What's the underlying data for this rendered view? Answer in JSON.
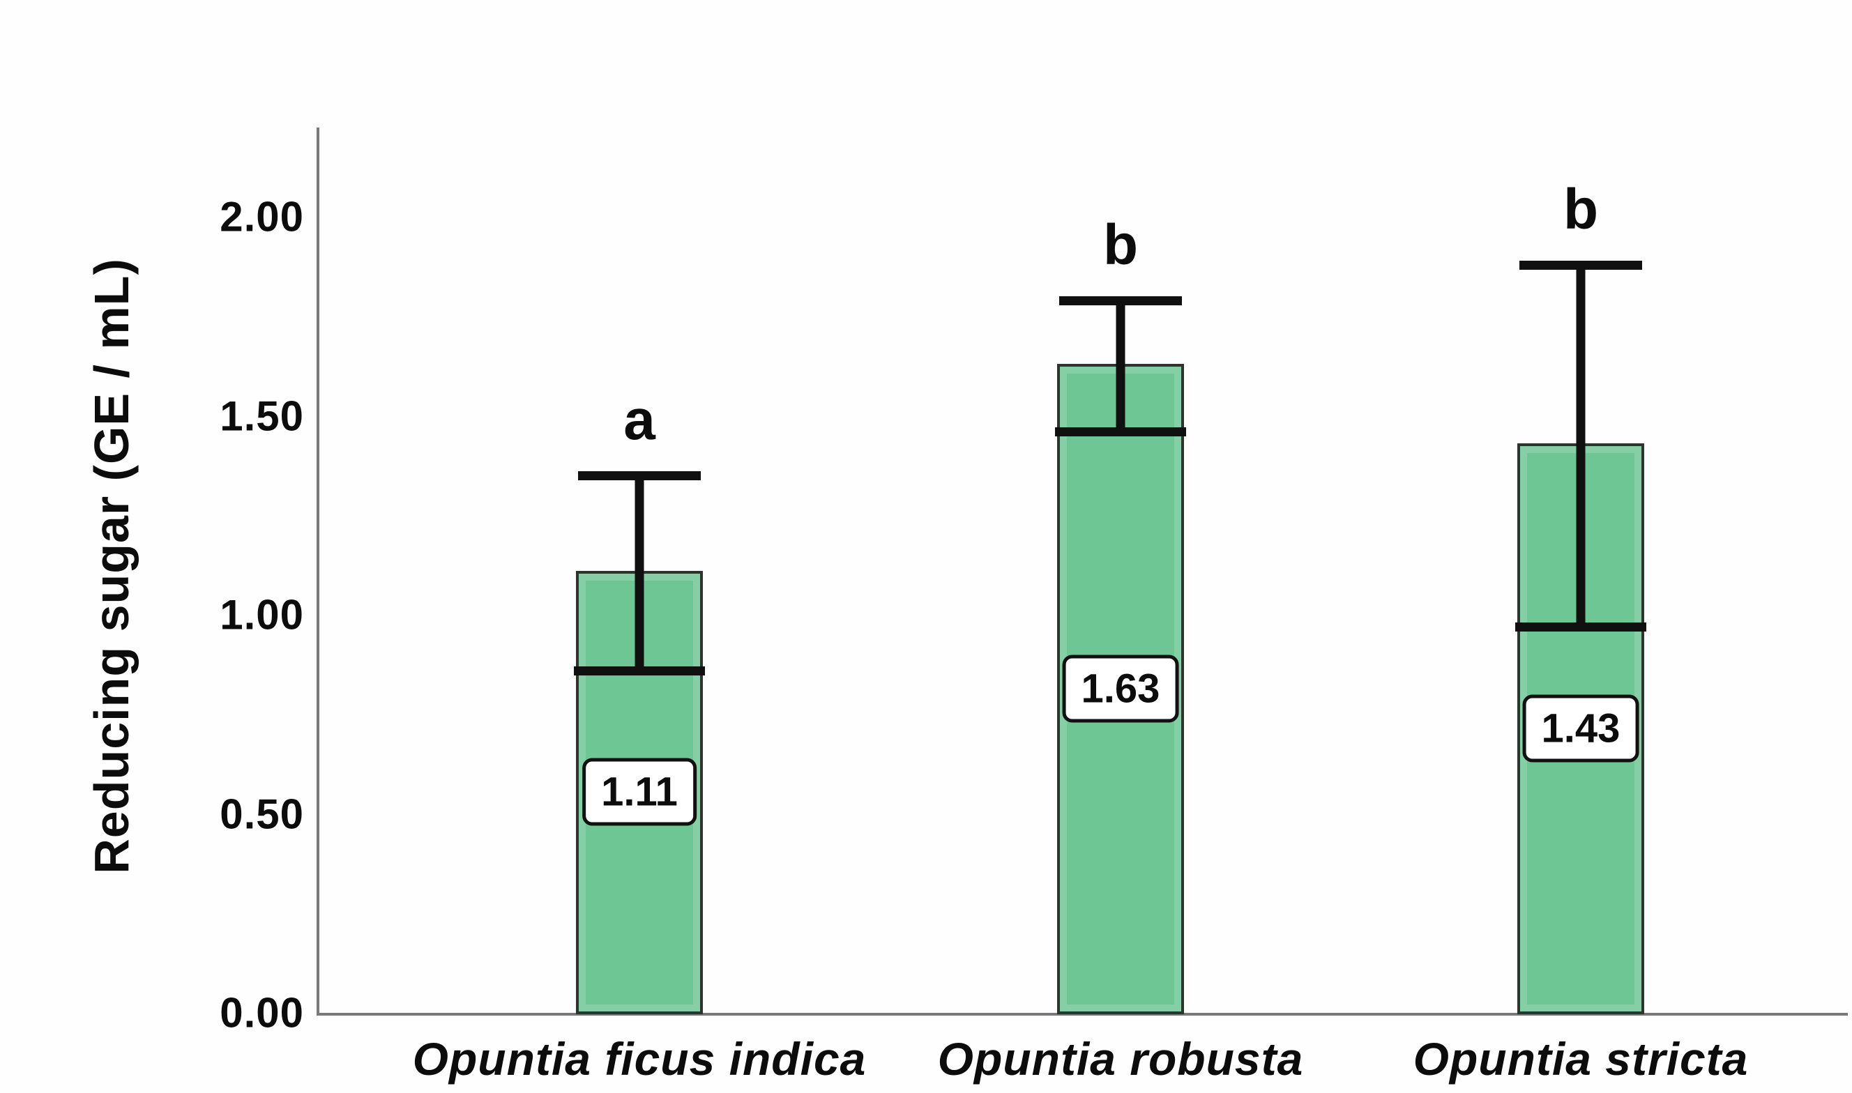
{
  "chart_data": {
    "type": "bar",
    "title": "",
    "xlabel": "",
    "ylabel": "Reducing sugar (GE / mL)",
    "categories": [
      "Opuntia ficus indica",
      "Opuntia robusta",
      "Opuntia stricta"
    ],
    "values": [
      1.11,
      1.63,
      1.43
    ],
    "value_labels": [
      "1.11",
      "1.63",
      "1.43"
    ],
    "errors": [
      0.25,
      0.17,
      0.46
    ],
    "significance_letters": [
      "a",
      "b",
      "b"
    ],
    "yticks": [
      0.0,
      0.5,
      1.0,
      1.5,
      2.0
    ],
    "ytick_labels": [
      "0.00",
      "0.50",
      "1.00",
      "1.50",
      "2.00"
    ],
    "ylim": [
      0,
      2.22
    ],
    "grid": "off",
    "legend": "none",
    "colors": {
      "bar_fill": "#6fc695",
      "bar_border": "#2b352d",
      "error_bar": "#101010",
      "axis_line": "#7a7a7a",
      "text": "#0c0c0c",
      "value_box_bg": "#ffffff",
      "value_box_border": "#111111",
      "background": "#fefefe"
    }
  }
}
